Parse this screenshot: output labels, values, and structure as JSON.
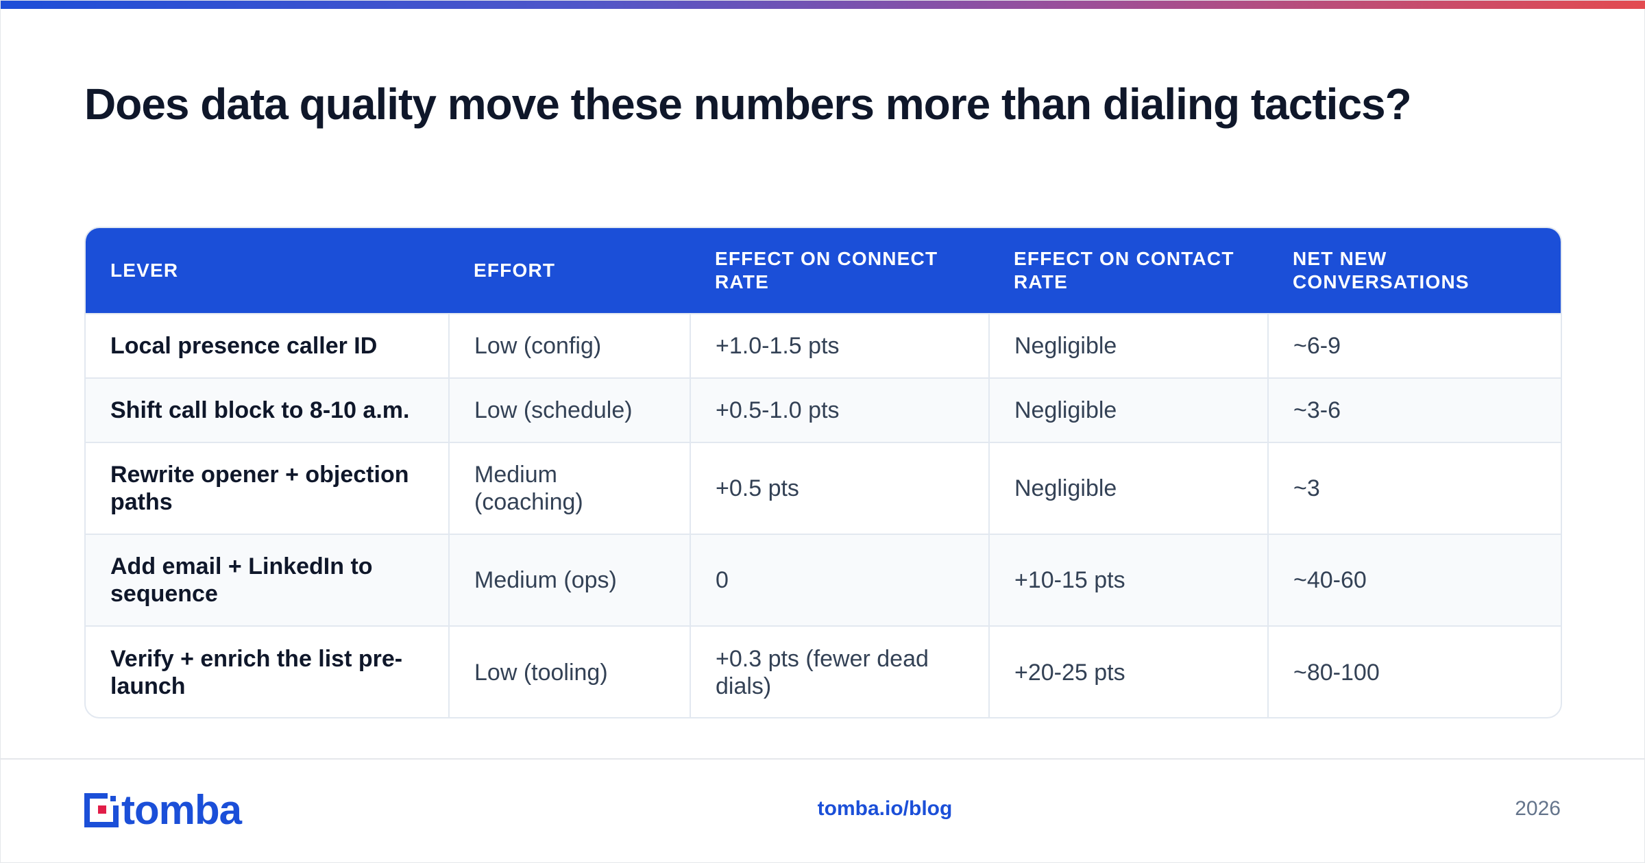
{
  "title": "Does data quality move these numbers more than dialing tactics?",
  "accent_color": "#1b4fd8",
  "table": {
    "headers": [
      "LEVER",
      "EFFORT",
      "EFFECT ON CONNECT RATE",
      "EFFECT ON CONTACT RATE",
      "NET NEW CONVERSATIONS"
    ],
    "rows": [
      [
        "Local presence caller ID",
        "Low (config)",
        "+1.0-1.5 pts",
        "Negligible",
        "~6-9"
      ],
      [
        "Shift call block to 8-10 a.m.",
        "Low (schedule)",
        "+0.5-1.0 pts",
        "Negligible",
        "~3-6"
      ],
      [
        "Rewrite opener + objection paths",
        "Medium (coaching)",
        "+0.5 pts",
        "Negligible",
        "~3"
      ],
      [
        "Add email + LinkedIn to sequence",
        "Medium (ops)",
        "0",
        "+10-15 pts",
        "~40-60"
      ],
      [
        "Verify + enrich the list pre-launch",
        "Low (tooling)",
        "+0.3 pts (fewer dead dials)",
        "+20-25 pts",
        "~80-100"
      ]
    ]
  },
  "footer": {
    "logo_text": "tomba",
    "logo_icon": "tomba-logo-icon",
    "link": "tomba.io/blog",
    "year": "2026"
  }
}
